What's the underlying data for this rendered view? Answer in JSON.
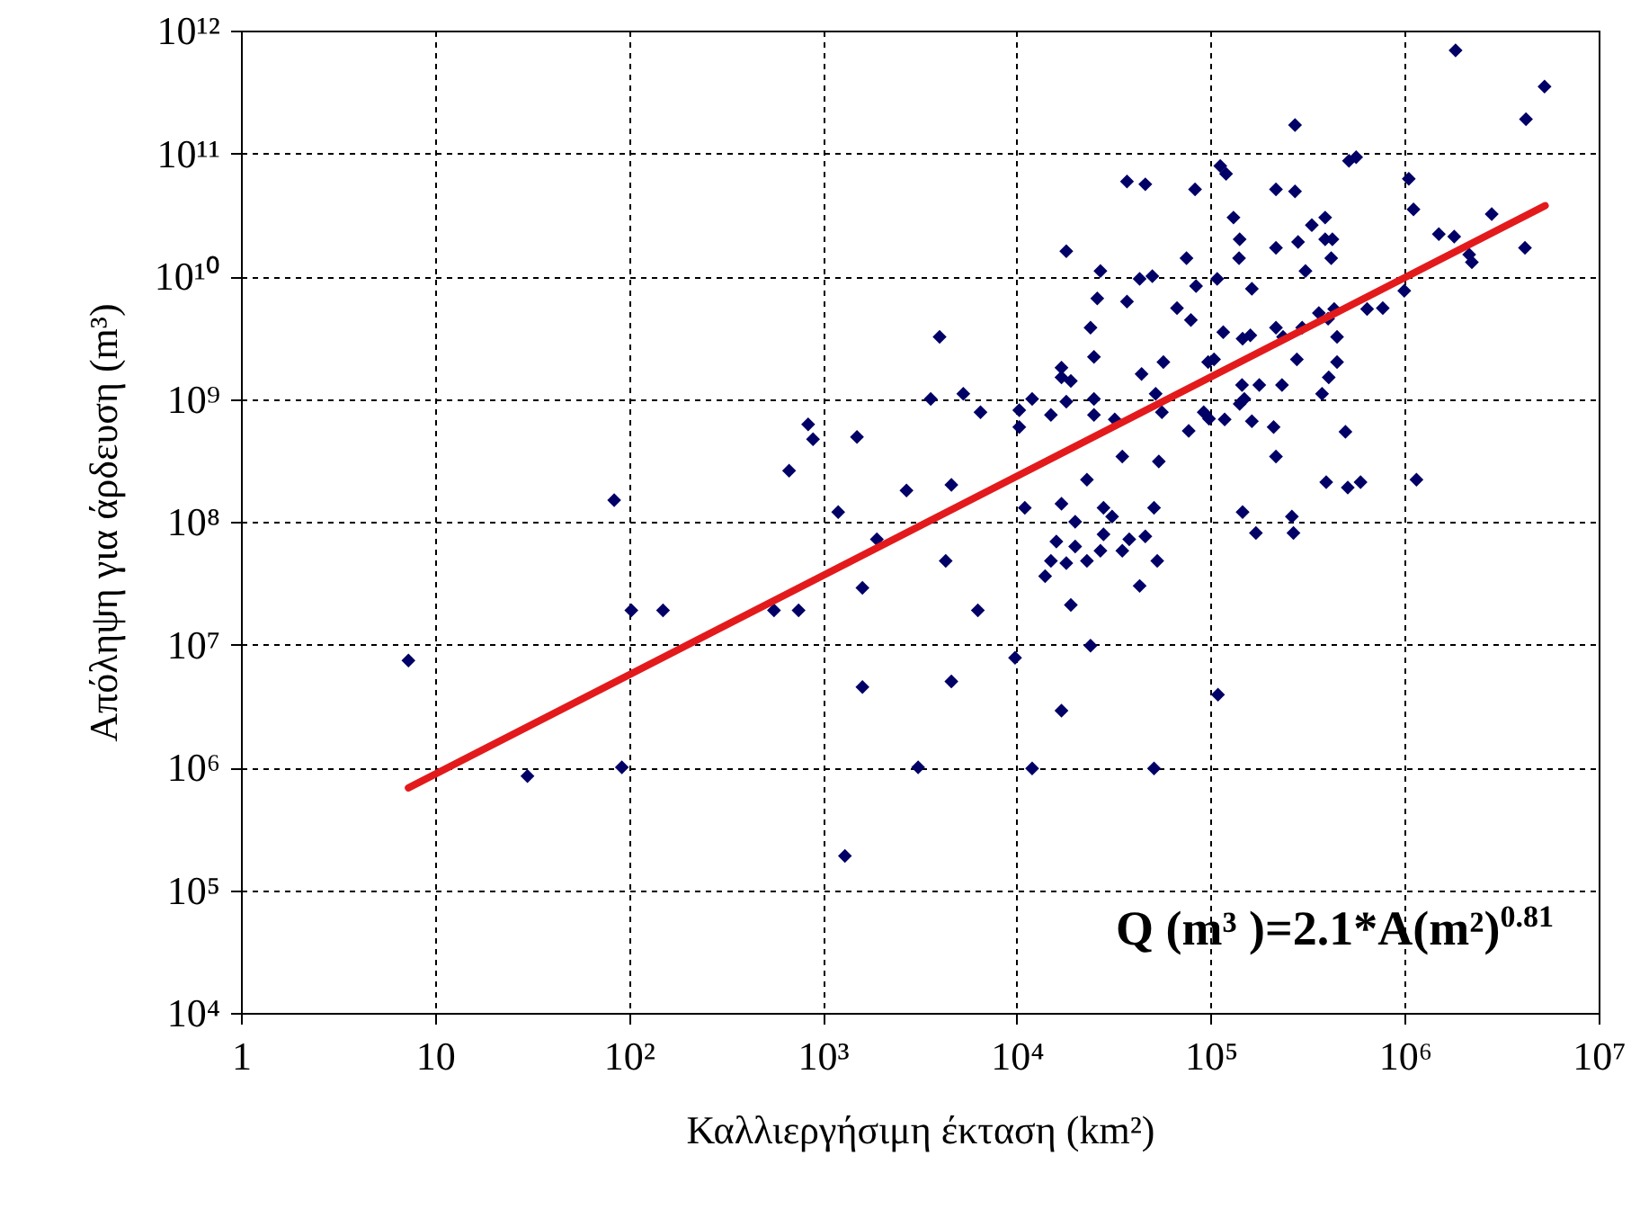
{
  "chart_data": {
    "type": "scatter",
    "xlabel": "Καλλιεργήσιμη έκταση (km²)",
    "ylabel": "Απόληψη για άρδευση  (m³)",
    "log": "xy",
    "grid": true,
    "xlim": [
      1,
      10000000
    ],
    "xticks": [
      1,
      10,
      {
        "value": 100,
        "label": "10²"
      },
      {
        "value": 1000,
        "label": "10³"
      },
      {
        "value": 10000,
        "label": "10⁴"
      },
      {
        "value": 100000,
        "label": "10⁵"
      },
      {
        "value": 1000000,
        "label": "10⁶"
      },
      {
        "value": 10000000,
        "label": "10⁷"
      }
    ],
    "ylim": [
      10000,
      1000000000000
    ],
    "yticks": [
      {
        "value": 10000,
        "label": "10⁴"
      },
      {
        "value": 100000,
        "label": "10⁵"
      },
      {
        "value": 1000000,
        "label": "10⁶"
      },
      {
        "value": 10000000,
        "label": "10⁷"
      },
      {
        "value": 100000000,
        "label": "10⁸"
      },
      {
        "value": 1000000000,
        "label": "10⁹"
      },
      {
        "value": 10000000000,
        "label": "10¹⁰"
      },
      {
        "value": 100000000000,
        "label": "10¹¹"
      },
      {
        "value": 1000000000000,
        "label": "10¹²"
      }
    ],
    "annotations": [
      "Q (m³ )=2.1*A(m²)$^{0.81}$"
    ],
    "series": [
      {
        "marker": "diamond",
        "color": "#000066",
        "x": [
          7.3,
          30,
          84,
          92,
          103,
          150,
          560,
          750,
          670,
          840,
          890,
          1200,
          1500,
          1600,
          1600,
          1300,
          1900,
          2700,
          3100,
          3600,
          4000,
          4600,
          5300,
          6500,
          10300,
          10300,
          12000,
          15000,
          17000,
          17000,
          19000,
          18000,
          25000,
          25000,
          25000,
          24000,
          26000,
          27000,
          18000,
          37000,
          46000,
          83000,
          37000,
          43000,
          50000,
          44000,
          57000,
          52000,
          56000,
          32000,
          35000,
          54000,
          23000,
          17000,
          11000,
          20000,
          28000,
          31000,
          51000,
          67000,
          79000,
          75000,
          84000,
          77000,
          92000,
          98000,
          97000,
          104000,
          108000,
          112000,
          120000,
          131000,
          141000,
          140000,
          116000,
          146000,
          160000,
          163000,
          145000,
          178000,
          141000,
          149000,
          118000,
          163000,
          146000,
          171000,
          217000,
          272000,
          272000,
          217000,
          282000,
          308000,
          332000,
          389000,
          389000,
          424000,
          418000,
          217000,
          236000,
          296000,
          361000,
          403000,
          433000,
          448000,
          278000,
          233000,
          448000,
          406000,
          375000,
          211000,
          217000,
          495000,
          394000,
          509000,
          592000,
          262000,
          267000,
          516000,
          562000,
          640000,
          771000,
          995000,
          1050000,
          1110000,
          1150000,
          1500000,
          1800000,
          2150000,
          2220000,
          2810000,
          4170000,
          1830000,
          4220000,
          5260000,
          4300,
          6300,
          4600,
          9800,
          12000,
          14000,
          15000,
          18000,
          16000,
          20000,
          19000,
          17000,
          24000,
          23000,
          27000,
          28000,
          35000,
          38000,
          46000,
          53000,
          43000,
          51000,
          109000
        ],
        "values": [
          7400000,
          850000,
          150000000,
          1000000,
          19000000,
          19000000,
          19000000,
          19000000,
          260000000,
          620000000,
          470000000,
          120000000,
          490000000,
          29000000,
          4500000,
          190000,
          72000000,
          180000000,
          1000000,
          1000000000,
          3200000000,
          200000000,
          1100000000,
          780000000,
          810000000,
          590000000,
          1000000000,
          740000000,
          1800000000,
          1500000000,
          1400000000,
          950000000,
          1000000000,
          740000000,
          2200000000,
          3800000000,
          6600000000,
          11000000000,
          16000000000,
          59000000000,
          56000000000,
          51000000000,
          6200000000,
          9500000000,
          10000000000,
          1600000000,
          2000000000,
          1100000000,
          780000000,
          680000000,
          340000000,
          310000000,
          220000000,
          140000000,
          130000000,
          100000000,
          130000000,
          110000000,
          130000000,
          5500000000,
          4400000000,
          14000000000,
          8300000000,
          550000000,
          780000000,
          690000000,
          2000000000,
          2100000000,
          9500000000,
          79000000000,
          68000000000,
          30000000000,
          20000000000,
          14000000000,
          3500000000,
          3100000000,
          3300000000,
          7900000000,
          1300000000,
          1300000000,
          910000000,
          1000000000,
          680000000,
          660000000,
          120000000,
          81000000,
          51000000000,
          49000000000,
          170000000000,
          17000000000,
          19000000000,
          11000000000,
          26000000000,
          30000000000,
          20000000000,
          20000000000,
          14000000000,
          3800000000,
          3200000000,
          3800000000,
          5000000000,
          4500000000,
          5400000000,
          3200000000,
          2100000000,
          1300000000,
          2000000000,
          1500000000,
          1100000000,
          590000000,
          340000000,
          540000000,
          210000000,
          190000000,
          210000000,
          110000000,
          81000000,
          87000000000,
          93000000000,
          5400000000,
          5500000000,
          7600000000,
          62000000000,
          35000000000,
          220000000,
          22000000000,
          21000000000,
          15000000000,
          13000000000,
          32000000000,
          17000000000,
          690000000000,
          190000000000,
          350000000000,
          48000000,
          19000000,
          5000000,
          7800000,
          980000,
          36000000,
          48000000,
          46000000,
          69000000,
          63000000,
          21000000,
          2900000,
          9800000,
          48000000,
          58000000,
          79000000,
          58000000,
          72000000,
          76000000,
          48000000,
          30000000,
          980000,
          3900000
        ]
      },
      {
        "type": "line",
        "color": "#e31a1c",
        "x": [
          7.3,
          5300000
        ],
        "values": [
          680000,
          37500000000
        ]
      }
    ]
  }
}
